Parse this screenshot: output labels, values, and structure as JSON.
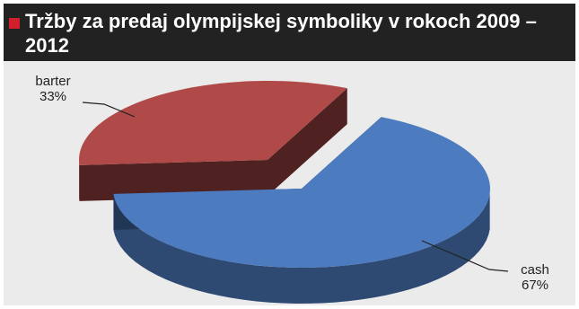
{
  "header": {
    "title": "Tržby za predaj olympijskej symboliky v rokoch 2009 – 2012",
    "marker_color": "#d21f2b",
    "background": "#222222"
  },
  "chart_data": {
    "type": "pie",
    "title": "Tržby za predaj olympijskej symboliky v rokoch 2009 – 2012",
    "labels": [
      "barter",
      "cash"
    ],
    "values": [
      33,
      67
    ],
    "value_labels": [
      "33%",
      "67%"
    ],
    "colors": [
      "#b04a48",
      "#4c7bbf"
    ],
    "style": "3d-exploded",
    "legend": "none"
  }
}
